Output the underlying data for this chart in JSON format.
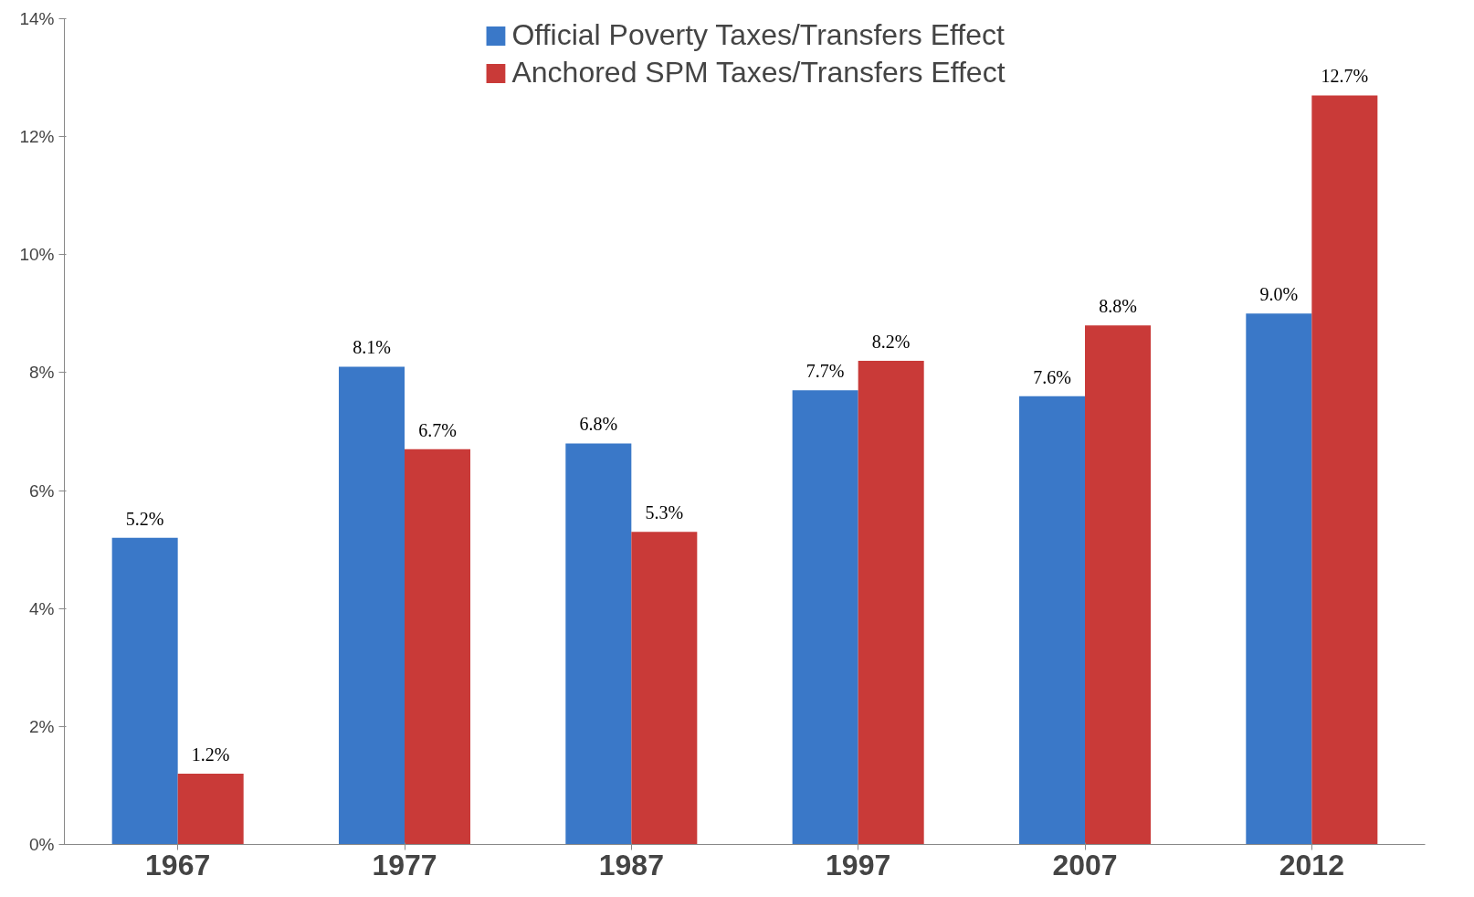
{
  "chart_data": {
    "type": "bar",
    "categories": [
      "1967",
      "1977",
      "1987",
      "1997",
      "2007",
      "2012"
    ],
    "series": [
      {
        "name": "Official Poverty Taxes/Transfers Effect",
        "color": "#3a78c8",
        "values": [
          5.2,
          8.1,
          6.8,
          7.7,
          7.6,
          9.0
        ],
        "value_labels": [
          "5.2%",
          "8.1%",
          "6.8%",
          "7.7%",
          "7.6%",
          "9.0%"
        ]
      },
      {
        "name": "Anchored SPM Taxes/Transfers Effect",
        "color": "#c93a38",
        "values": [
          1.2,
          6.7,
          5.3,
          8.2,
          8.8,
          12.7
        ],
        "value_labels": [
          "1.2%",
          "6.7%",
          "5.3%",
          "8.2%",
          "8.8%",
          "12.7%"
        ]
      }
    ],
    "ylim": [
      0,
      14
    ],
    "yticks": [
      {
        "value": 0,
        "label": "0%"
      },
      {
        "value": 2,
        "label": "2%"
      },
      {
        "value": 4,
        "label": "4%"
      },
      {
        "value": 6,
        "label": "6%"
      },
      {
        "value": 8,
        "label": "8%"
      },
      {
        "value": 10,
        "label": "10%"
      },
      {
        "value": 12,
        "label": "12%"
      },
      {
        "value": 14,
        "label": "14%"
      }
    ],
    "grid": false,
    "legend": "top"
  }
}
